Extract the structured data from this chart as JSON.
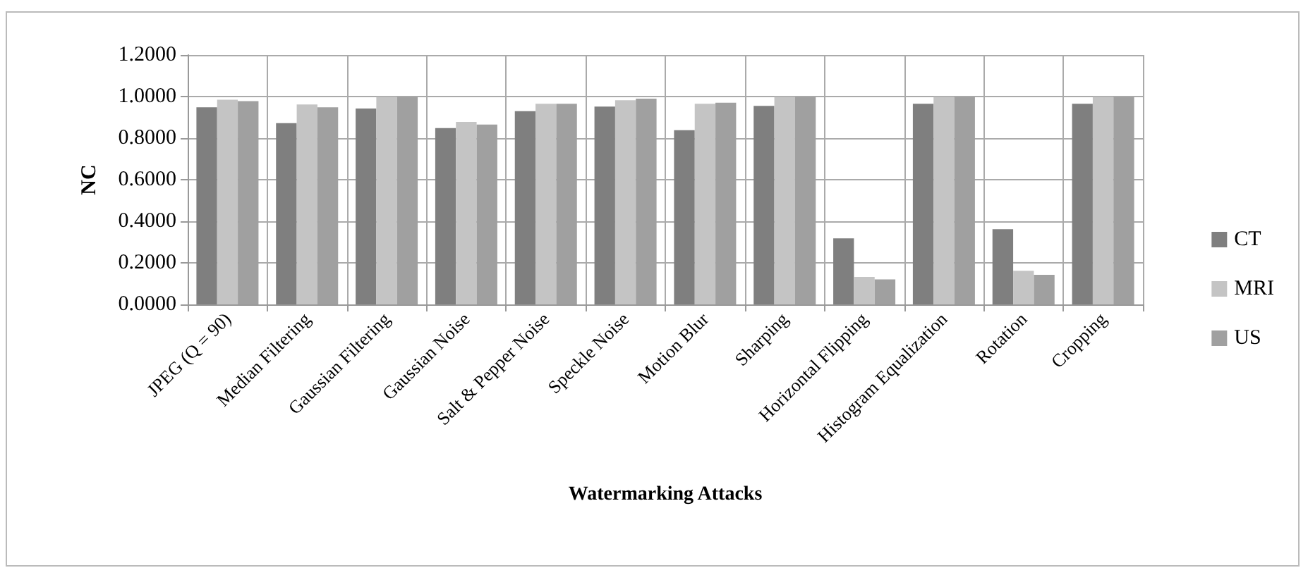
{
  "chart_data": {
    "type": "bar",
    "xlabel": "Watermarking Attacks",
    "ylabel": "NC",
    "categories": [
      "JPEG (Q = 90)",
      "Median Filtering",
      "Gaussian Filtering",
      "Gaussian Noise",
      "Salt & Pepper Noise",
      "Speckle Noise",
      "Motion Blur",
      "Sharping",
      "Horizontal Flipping",
      "Histogram Equalization",
      "Rotation",
      "Cropping"
    ],
    "series": [
      {
        "name": "CT",
        "color": "#7f7f7f",
        "values": [
          0.948,
          0.872,
          0.942,
          0.848,
          0.93,
          0.952,
          0.838,
          0.955,
          0.318,
          0.965,
          0.362,
          0.965
        ]
      },
      {
        "name": "MRI",
        "color": "#c4c4c4",
        "values": [
          0.985,
          0.962,
          0.998,
          0.878,
          0.965,
          0.982,
          0.965,
          0.998,
          0.132,
          0.998,
          0.162,
          0.998
        ]
      },
      {
        "name": "US",
        "color": "#a0a0a0",
        "values": [
          0.978,
          0.948,
          0.998,
          0.865,
          0.965,
          0.99,
          0.97,
          0.998,
          0.12,
          0.998,
          0.142,
          0.998
        ]
      }
    ],
    "ylim": [
      0,
      1.2
    ],
    "yticks": [
      {
        "value": 0,
        "label": "0.0000"
      },
      {
        "value": 0.2,
        "label": "0.2000"
      },
      {
        "value": 0.4,
        "label": "0.4000"
      },
      {
        "value": 0.6,
        "label": "0.6000"
      },
      {
        "value": 0.8,
        "label": "0.8000"
      },
      {
        "value": 1.0,
        "label": "1.0000"
      },
      {
        "value": 1.2,
        "label": "1.2000"
      }
    ],
    "grid": true,
    "legend": "right"
  }
}
